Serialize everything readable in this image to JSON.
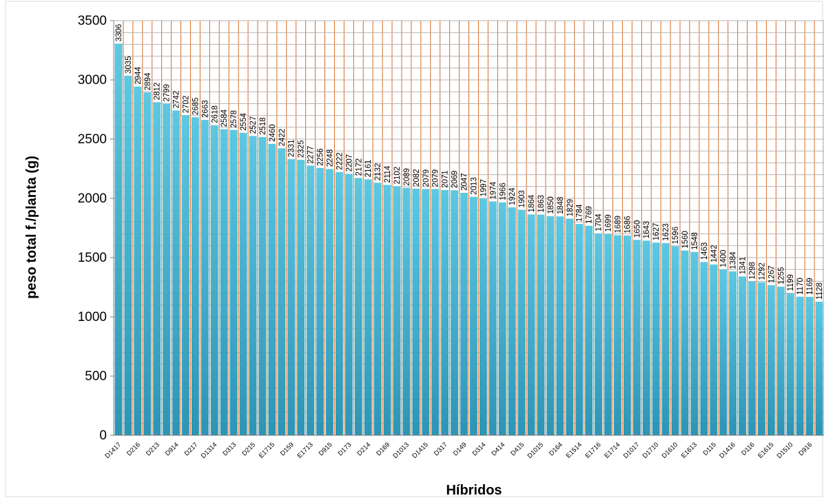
{
  "chart_data": {
    "type": "bar",
    "xlabel": "Híbridos",
    "ylabel": "peso total f./planta (g)",
    "ylim": [
      0,
      3500
    ],
    "yticks": [
      0,
      500,
      1000,
      1500,
      2000,
      2500,
      3000,
      3500
    ],
    "grid": true,
    "legend": "none",
    "colors": {
      "bar_top": "#5cc8e2",
      "bar_bottom": "#2c95b5",
      "grid_vertical": "#d9691f",
      "grid_horizontal": "#b3b3b3",
      "axis": "#808080"
    },
    "category_labels": [
      "D1417",
      "D216",
      "D213",
      "D914",
      "D217",
      "D1314",
      "D313",
      "D215",
      "E1715",
      "D159",
      "E1713",
      "D915",
      "D173",
      "D214",
      "D169",
      "D1013",
      "D1415",
      "D317",
      "D149",
      "D314",
      "D414",
      "D415",
      "D1015",
      "D164",
      "E1514",
      "E1716",
      "E1714",
      "D1017",
      "D1710",
      "D1610",
      "E1613",
      "D115",
      "D1416",
      "D116",
      "E1615",
      "D1510",
      "D916"
    ],
    "values": [
      3306,
      3035,
      2944,
      2894,
      2812,
      2799,
      2742,
      2702,
      2685,
      2663,
      2618,
      2584,
      2578,
      2554,
      2527,
      2518,
      2460,
      2422,
      2331,
      2325,
      2277,
      2256,
      2248,
      2222,
      2207,
      2172,
      2161,
      2132,
      2114,
      2102,
      2089,
      2082,
      2079,
      2079,
      2071,
      2069,
      2047,
      2013,
      1997,
      1974,
      1966,
      1924,
      1903,
      1864,
      1863,
      1850,
      1848,
      1829,
      1784,
      1769,
      1704,
      1699,
      1689,
      1686,
      1650,
      1643,
      1627,
      1623,
      1596,
      1560,
      1548,
      1463,
      1442,
      1400,
      1384,
      1341,
      1298,
      1292,
      1267,
      1255,
      1199,
      1170,
      1169,
      1128
    ]
  }
}
